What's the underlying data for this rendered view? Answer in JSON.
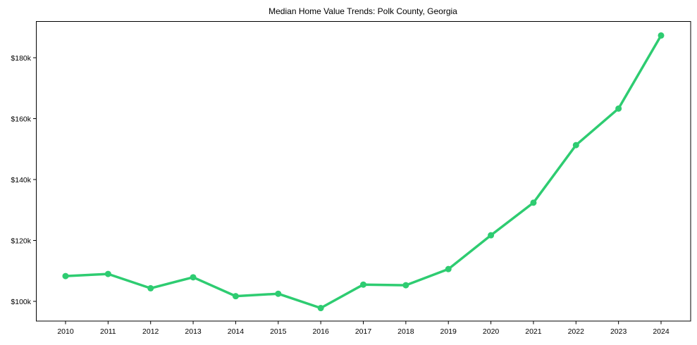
{
  "chart_data": {
    "type": "line",
    "title": "Median Home Value Trends: Polk County, Georgia",
    "xlabel": "",
    "ylabel": "",
    "categories": [
      "2010",
      "2011",
      "2012",
      "2013",
      "2014",
      "2015",
      "2016",
      "2017",
      "2018",
      "2019",
      "2020",
      "2021",
      "2022",
      "2023",
      "2024"
    ],
    "series": [
      {
        "name": "Median Home Value",
        "color": "#2ecc71",
        "values": [
          108300,
          109000,
          104300,
          107900,
          101700,
          102500,
          97800,
          105500,
          105300,
          110600,
          121700,
          132400,
          151300,
          163300,
          187300
        ]
      }
    ],
    "yticks": [
      100000,
      120000,
      140000,
      160000,
      180000
    ],
    "ytick_labels": [
      "$100k",
      "$120k",
      "$140k",
      "$160k",
      "$180k"
    ],
    "ylim": [
      93500,
      192500
    ],
    "grid": false,
    "legend": null
  }
}
